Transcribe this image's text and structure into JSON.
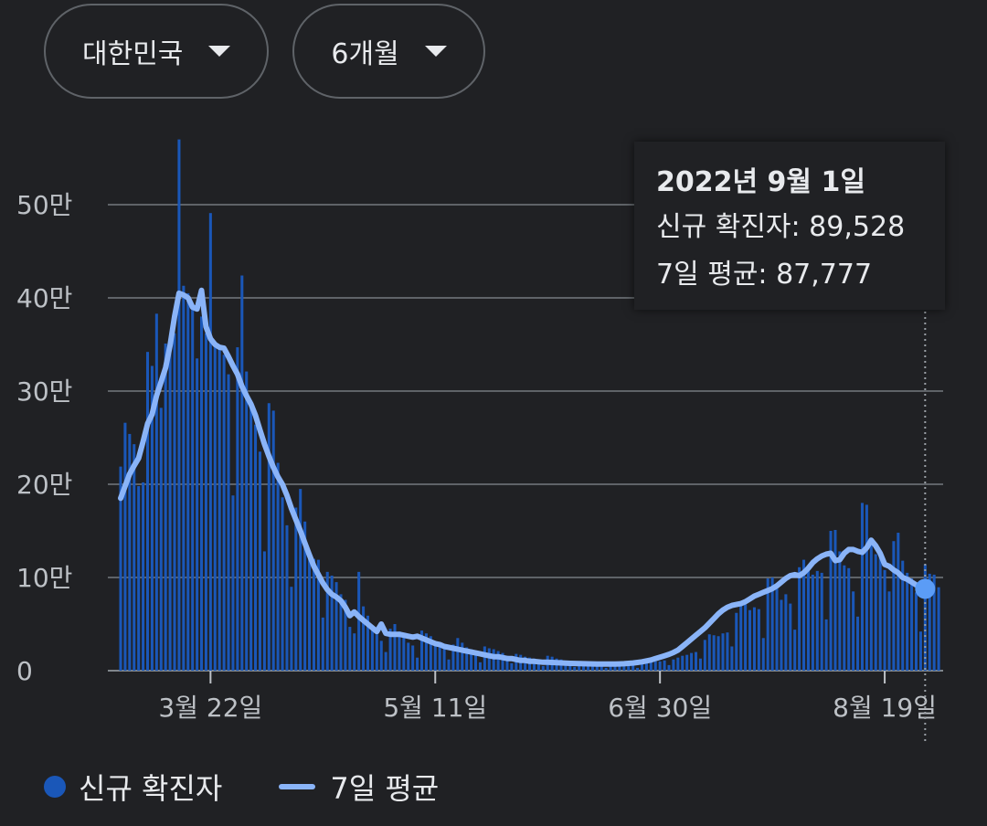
{
  "filters": [
    {
      "label": "대한민국"
    },
    {
      "label": "6개월"
    }
  ],
  "tooltip": {
    "date": "2022년 9월 1일",
    "new_cases_label": "신규 확진자: 89,528",
    "avg_label": "7일 평균: 87,777"
  },
  "legend": {
    "bars_label": "신규 확진자",
    "line_label": "7일 평균"
  },
  "colors": {
    "bar": "#1a57b8",
    "line": "#8ab4f8",
    "point": "#5b9cf6",
    "grid": "#5f6368"
  },
  "chart_data": {
    "type": "bar",
    "ylim": [
      0,
      600000
    ],
    "y_ticks": [
      {
        "value": 0,
        "label": "0"
      },
      {
        "value": 100000,
        "label": "10만"
      },
      {
        "value": 200000,
        "label": "20만"
      },
      {
        "value": 300000,
        "label": "30만"
      },
      {
        "value": 400000,
        "label": "40만"
      },
      {
        "value": 500000,
        "label": "50만"
      }
    ],
    "x_range": [
      "2022-03-02",
      "2022-09-01"
    ],
    "x_ticks": [
      {
        "date": "2022-03-22",
        "label": "3월 22일"
      },
      {
        "date": "2022-05-11",
        "label": "5월 11일"
      },
      {
        "date": "2022-06-30",
        "label": "6월 30일"
      },
      {
        "date": "2022-08-19",
        "label": "8월 19일"
      }
    ],
    "series": [
      {
        "name": "신규 확진자",
        "start_date": "2022-03-02",
        "values": [
          219000,
          266000,
          254000,
          243000,
          198000,
          202000,
          342000,
          327000,
          383000,
          282000,
          351000,
          349000,
          362000,
          570000,
          413000,
          405000,
          390000,
          335000,
          380000,
          362000,
          491000,
          353000,
          349000,
          339000,
          318000,
          188000,
          347000,
          424000,
          321000,
          284000,
          264000,
          235000,
          128000,
          287000,
          279000,
          223000,
          186000,
          156000,
          90000,
          175000,
          195000,
          160000,
          126000,
          120000,
          119000,
          57000,
          106000,
          102000,
          95000,
          82000,
          76000,
          47000,
          40000,
          106000,
          69000,
          59000,
          46000,
          39000,
          32000,
          20000,
          45000,
          50000,
          42000,
          36000,
          30000,
          27000,
          14000,
          43000,
          40000,
          37000,
          31000,
          27000,
          23000,
          12000,
          28000,
          35000,
          30000,
          25000,
          23000,
          19000,
          9000,
          26000,
          24000,
          23000,
          21000,
          19000,
          16000,
          8000,
          18000,
          17000,
          15000,
          14000,
          13000,
          11000,
          5000,
          16000,
          15000,
          13000,
          12000,
          10000,
          9000,
          4000,
          10000,
          10000,
          9000,
          8000,
          8000,
          7000,
          3000,
          7000,
          9000,
          8000,
          7000,
          7000,
          6000,
          3000,
          7000,
          9000,
          9000,
          10000,
          10000,
          11000,
          6000,
          12000,
          14000,
          16000,
          17000,
          19000,
          20000,
          13000,
          33000,
          39000,
          38000,
          37000,
          40000,
          41000,
          26000,
          62000,
          73000,
          71000,
          65000,
          68000,
          66000,
          35000,
          99000,
          100000,
          88000,
          76000,
          82000,
          72000,
          44000,
          111000,
          119000,
          108000,
          103000,
          107000,
          105000,
          55000,
          150000,
          151000,
          128000,
          113000,
          110000,
          85000,
          58000,
          180000,
          178000,
          137000,
          125000,
          128000,
          108000,
          85000,
          139000,
          148000,
          118000,
          105000,
          99000,
          84000,
          42000,
          114000,
          104000,
          103000,
          89528
        ]
      },
      {
        "name": "7일 평균",
        "start_date": "2022-03-02",
        "values": [
          185000,
          198000,
          211000,
          220000,
          228000,
          246000,
          265000,
          275000,
          295000,
          310000,
          325000,
          349000,
          380000,
          405000,
          403000,
          400000,
          390000,
          388000,
          408000,
          369000,
          356000,
          350000,
          347000,
          346000,
          337000,
          327000,
          318000,
          305000,
          295000,
          286000,
          274000,
          258000,
          243000,
          230000,
          218000,
          208000,
          200000,
          188000,
          174000,
          162000,
          150000,
          137000,
          124000,
          112000,
          103000,
          94000,
          87000,
          82000,
          79000,
          75000,
          68000,
          59000,
          63000,
          58000,
          54000,
          50000,
          46000,
          42000,
          50000,
          40000,
          39000,
          39000,
          39000,
          38000,
          37000,
          36000,
          37000,
          35000,
          33000,
          31000,
          29000,
          28000,
          26000,
          25000,
          24000,
          23000,
          22000,
          21000,
          20000,
          19000,
          18000,
          17000,
          16000,
          15000,
          15000,
          14000,
          13000,
          13000,
          12000,
          11000,
          11000,
          10000,
          10000,
          9500,
          9000,
          9000,
          8800,
          8500,
          8300,
          8000,
          7800,
          7700,
          7600,
          7500,
          7400,
          7300,
          7200,
          7200,
          7200,
          7200,
          7200,
          7300,
          7500,
          7800,
          8200,
          8800,
          9500,
          10500,
          11500,
          13000,
          14500,
          16000,
          17500,
          19500,
          22000,
          26000,
          30000,
          34000,
          38000,
          42000,
          46000,
          51000,
          56000,
          61000,
          65000,
          68000,
          70000,
          71000,
          72000,
          74000,
          77000,
          80000,
          82000,
          84000,
          86000,
          88000,
          91000,
          95000,
          99000,
          102000,
          103000,
          102000,
          105000,
          110000,
          116000,
          120000,
          123000,
          125000,
          126000,
          118000,
          119000,
          126000,
          130000,
          130000,
          128000,
          127000,
          132000,
          140000,
          134000,
          126000,
          114000,
          112000,
          108000,
          105000,
          100000,
          98000,
          95000,
          92000,
          89000,
          87777
        ]
      }
    ]
  }
}
